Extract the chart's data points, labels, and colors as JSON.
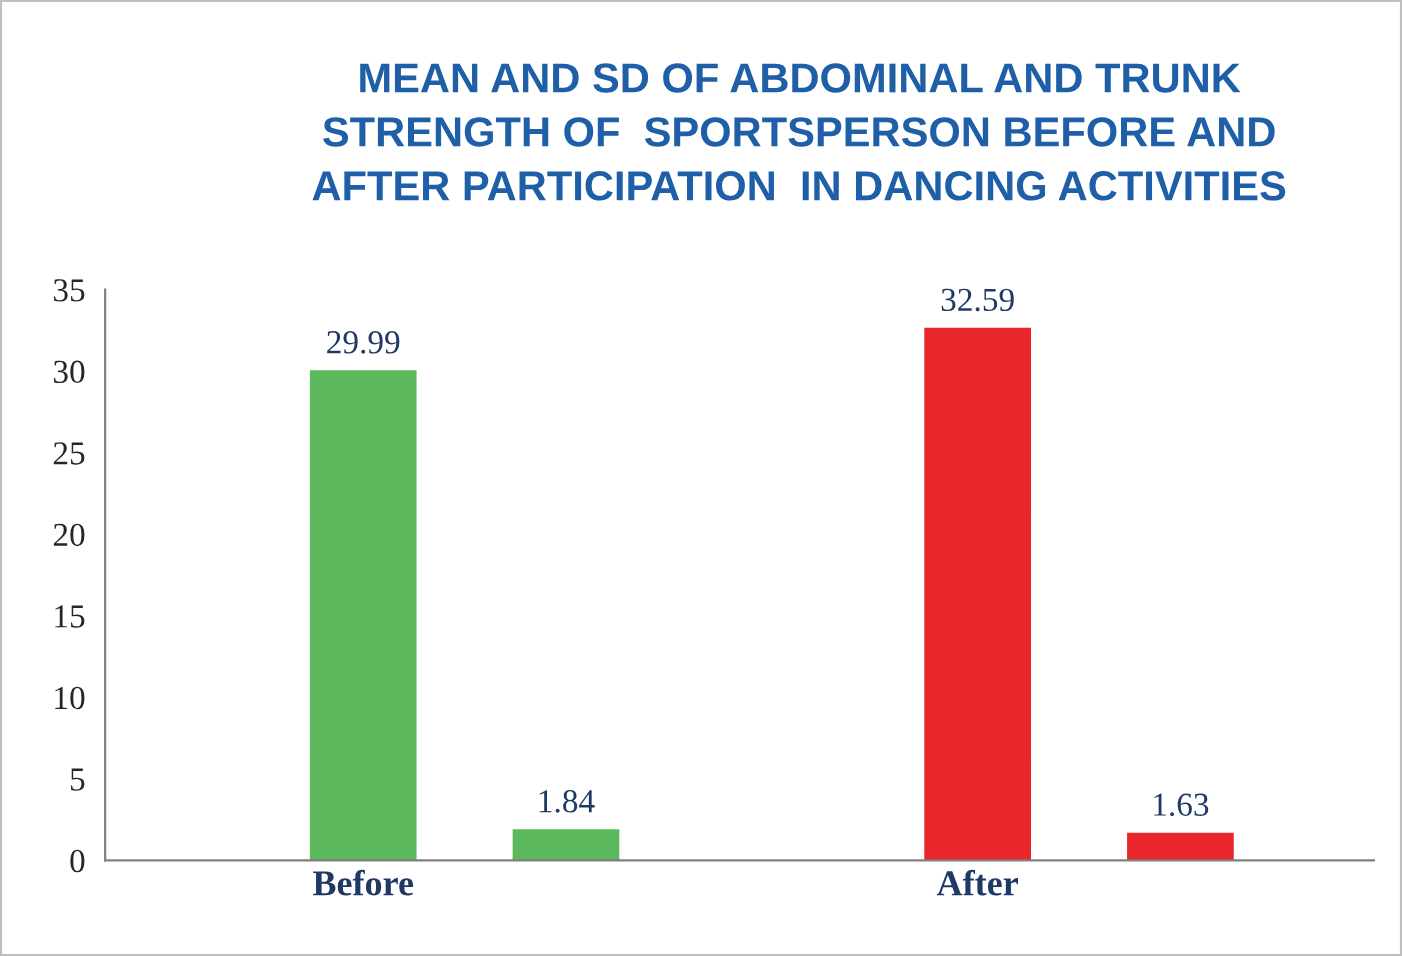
{
  "chart_data": {
    "type": "bar",
    "title": "MEAN AND SD OF ABDOMINAL AND TRUNK\nSTRENGTH OF  SPORTSPERSON BEFORE AND\nAFTER PARTICIPATION  IN DANCING ACTIVITIES",
    "categories": [
      "Before",
      "After"
    ],
    "series": [
      {
        "values": [
          29.99,
          32.59
        ],
        "colors": [
          "#5cb85c",
          "#e8262b"
        ]
      },
      {
        "values": [
          1.84,
          1.63
        ],
        "colors": [
          "#5cb85c",
          "#e8262b"
        ]
      }
    ],
    "ylim": [
      0,
      35
    ],
    "yticks": [
      0,
      5,
      10,
      15,
      20,
      25,
      30,
      35
    ],
    "grid": false,
    "legend": false,
    "data_labels": true
  }
}
